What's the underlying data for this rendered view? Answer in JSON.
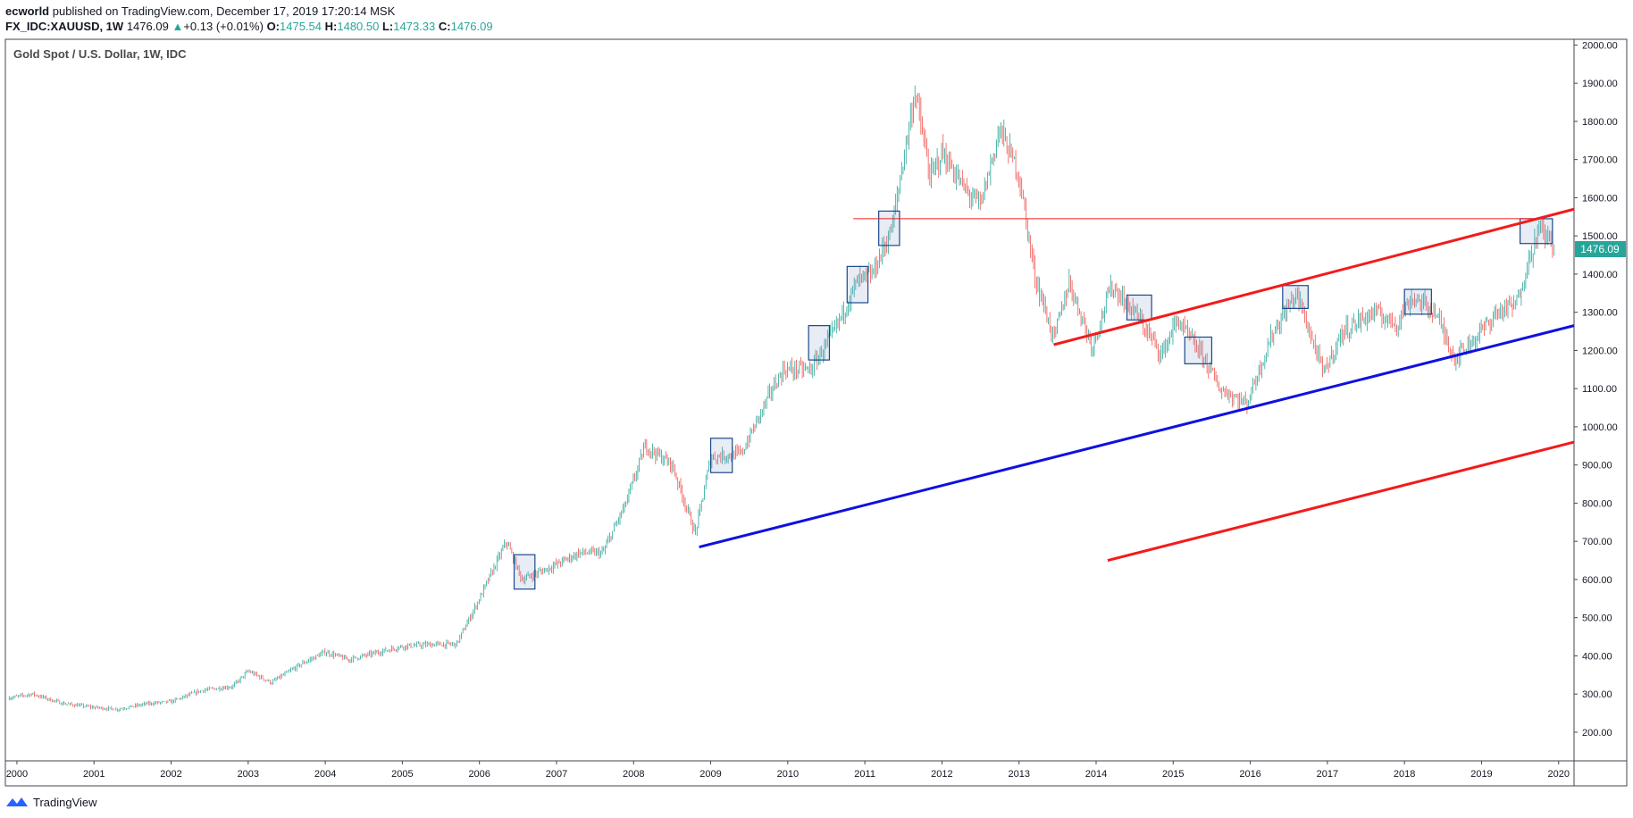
{
  "header": {
    "author": "ecworld",
    "published_text": "published on TradingView.com, December 17, 2019 17:20:14 MSK",
    "symbol": "FX_IDC:XAUUSD, 1W",
    "last": "1476.09",
    "change_arrow": "▲",
    "change": "+0.13 (+0.01%)",
    "o_label": "O:",
    "o": "1475.54",
    "h_label": "H:",
    "h": "1480.50",
    "l_label": "L:",
    "l": "1473.33",
    "c_label": "C:",
    "c": "1476.09"
  },
  "footer": {
    "brand": "TradingView"
  },
  "colors": {
    "up": "#26a69a",
    "down": "#ef5350",
    "red_line": "#f21b1b",
    "blue_line": "#1010e0",
    "box_stroke": "#1a4a8c",
    "box_fill": "rgba(120,150,200,0.18)"
  },
  "chart_data": {
    "type": "candlestick",
    "title": "Gold Spot / U.S. Dollar, 1W, IDC",
    "x_ticks": [
      "2000",
      "2001",
      "2002",
      "2003",
      "2004",
      "2005",
      "2006",
      "2007",
      "2008",
      "2009",
      "2010",
      "2011",
      "2012",
      "2013",
      "2014",
      "2015",
      "2016",
      "2017",
      "2018",
      "2019",
      "2020"
    ],
    "y_ticks": [
      "200.00",
      "300.00",
      "400.00",
      "500.00",
      "600.00",
      "700.00",
      "800.00",
      "900.00",
      "1000.00",
      "1100.00",
      "1200.00",
      "1300.00",
      "1400.00",
      "1500.00",
      "1600.00",
      "1700.00",
      "1800.00",
      "1900.00",
      "2000.00"
    ],
    "xlim": [
      1999.85,
      2020.2
    ],
    "ylim": [
      125,
      2015
    ],
    "price_label": "1476.09",
    "price_series": [
      [
        1999.9,
        290
      ],
      [
        2000.2,
        300
      ],
      [
        2000.6,
        275
      ],
      [
        2001.0,
        265
      ],
      [
        2001.3,
        260
      ],
      [
        2001.7,
        275
      ],
      [
        2002.0,
        280
      ],
      [
        2002.4,
        310
      ],
      [
        2002.8,
        320
      ],
      [
        2003.0,
        360
      ],
      [
        2003.3,
        330
      ],
      [
        2003.7,
        380
      ],
      [
        2004.0,
        410
      ],
      [
        2004.3,
        390
      ],
      [
        2004.7,
        410
      ],
      [
        2005.0,
        425
      ],
      [
        2005.4,
        430
      ],
      [
        2005.7,
        430
      ],
      [
        2006.0,
        550
      ],
      [
        2006.35,
        700
      ],
      [
        2006.55,
        600
      ],
      [
        2006.9,
        630
      ],
      [
        2007.3,
        670
      ],
      [
        2007.6,
        670
      ],
      [
        2007.9,
        800
      ],
      [
        2008.15,
        950
      ],
      [
        2008.5,
        900
      ],
      [
        2008.8,
        720
      ],
      [
        2009.0,
        920
      ],
      [
        2009.4,
        930
      ],
      [
        2009.8,
        1100
      ],
      [
        2009.95,
        1150
      ],
      [
        2010.3,
        1150
      ],
      [
        2010.6,
        1250
      ],
      [
        2010.9,
        1380
      ],
      [
        2011.1,
        1400
      ],
      [
        2011.35,
        1520
      ],
      [
        2011.65,
        1880
      ],
      [
        2011.85,
        1650
      ],
      [
        2012.0,
        1720
      ],
      [
        2012.3,
        1620
      ],
      [
        2012.5,
        1580
      ],
      [
        2012.75,
        1780
      ],
      [
        2013.0,
        1660
      ],
      [
        2013.2,
        1400
      ],
      [
        2013.45,
        1230
      ],
      [
        2013.65,
        1380
      ],
      [
        2013.95,
        1210
      ],
      [
        2014.2,
        1370
      ],
      [
        2014.5,
        1300
      ],
      [
        2014.85,
        1190
      ],
      [
        2015.05,
        1280
      ],
      [
        2015.4,
        1180
      ],
      [
        2015.6,
        1100
      ],
      [
        2015.95,
        1060
      ],
      [
        2016.3,
        1250
      ],
      [
        2016.6,
        1350
      ],
      [
        2016.95,
        1140
      ],
      [
        2017.2,
        1250
      ],
      [
        2017.6,
        1300
      ],
      [
        2017.9,
        1270
      ],
      [
        2018.1,
        1340
      ],
      [
        2018.4,
        1300
      ],
      [
        2018.65,
        1180
      ],
      [
        2018.95,
        1240
      ],
      [
        2019.2,
        1300
      ],
      [
        2019.45,
        1320
      ],
      [
        2019.6,
        1430
      ],
      [
        2019.75,
        1520
      ],
      [
        2019.95,
        1476
      ]
    ],
    "trend_lines": [
      {
        "color": "red_line",
        "width": 3,
        "from": [
          2013.45,
          1215
        ],
        "to": [
          2020.2,
          1570
        ]
      },
      {
        "color": "blue_line",
        "width": 3,
        "from": [
          2008.85,
          685
        ],
        "to": [
          2020.2,
          1265
        ]
      },
      {
        "color": "red_line",
        "width": 3,
        "from": [
          2014.15,
          650
        ],
        "to": [
          2020.2,
          960
        ]
      },
      {
        "color": "red_line",
        "width": 1,
        "from": [
          2010.85,
          1545
        ],
        "to": [
          2019.7,
          1545
        ]
      }
    ],
    "boxes": [
      {
        "x0": 2006.45,
        "x1": 2006.72,
        "y0": 575,
        "y1": 665
      },
      {
        "x0": 2009.0,
        "x1": 2009.28,
        "y0": 880,
        "y1": 970
      },
      {
        "x0": 2010.27,
        "x1": 2010.54,
        "y0": 1175,
        "y1": 1265
      },
      {
        "x0": 2010.77,
        "x1": 2011.04,
        "y0": 1325,
        "y1": 1420
      },
      {
        "x0": 2011.18,
        "x1": 2011.45,
        "y0": 1475,
        "y1": 1565
      },
      {
        "x0": 2014.4,
        "x1": 2014.72,
        "y0": 1280,
        "y1": 1345
      },
      {
        "x0": 2015.15,
        "x1": 2015.5,
        "y0": 1165,
        "y1": 1235
      },
      {
        "x0": 2016.42,
        "x1": 2016.75,
        "y0": 1310,
        "y1": 1370
      },
      {
        "x0": 2018.0,
        "x1": 2018.35,
        "y0": 1295,
        "y1": 1360
      },
      {
        "x0": 2019.5,
        "x1": 2019.92,
        "y0": 1480,
        "y1": 1545
      }
    ]
  }
}
